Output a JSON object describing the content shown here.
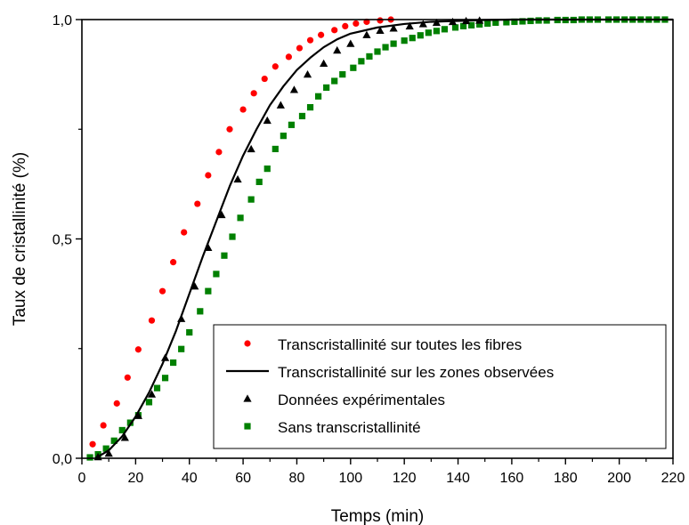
{
  "chart_data": {
    "type": "scatter",
    "xlabel": "Temps (min)",
    "ylabel": "Taux de cristallinité (%)",
    "xlim": [
      0,
      220
    ],
    "ylim": [
      0,
      1
    ],
    "x_ticks": [
      0,
      20,
      40,
      60,
      80,
      100,
      120,
      140,
      160,
      180,
      200,
      220
    ],
    "x_tick_labels": [
      "0",
      "20",
      "40",
      "60",
      "80",
      "100",
      "120",
      "140",
      "160",
      "180",
      "200",
      "220"
    ],
    "y_ticks": [
      0,
      0.5,
      1
    ],
    "y_tick_labels": [
      "0,0",
      "0,5",
      "1,0"
    ],
    "grid": false,
    "legend_position": "bottom-right",
    "series": [
      {
        "name": "Transcristallinité sur toutes les fibres",
        "style": "points",
        "marker": "circle",
        "color": "#ff0000",
        "x": [
          4,
          8,
          13,
          17,
          21,
          26,
          30,
          34,
          38,
          43,
          47,
          51,
          55,
          60,
          64,
          68,
          72,
          77,
          81,
          85,
          89,
          94,
          98,
          102,
          106,
          111,
          115
        ],
        "y": [
          0.032,
          0.075,
          0.125,
          0.184,
          0.248,
          0.314,
          0.381,
          0.447,
          0.515,
          0.58,
          0.645,
          0.698,
          0.75,
          0.795,
          0.832,
          0.865,
          0.893,
          0.915,
          0.935,
          0.953,
          0.965,
          0.976,
          0.985,
          0.991,
          0.995,
          0.998,
          1.0
        ]
      },
      {
        "name": "Transcristallinité sur les zones observées",
        "style": "line",
        "color": "#000000",
        "x": [
          5,
          10,
          15,
          20,
          25,
          30,
          35,
          40,
          45,
          50,
          55,
          60,
          65,
          70,
          75,
          80,
          85,
          90,
          95,
          100,
          110,
          120,
          130,
          140,
          150,
          160,
          180,
          200,
          220
        ],
        "y": [
          0.0,
          0.018,
          0.05,
          0.095,
          0.15,
          0.215,
          0.29,
          0.375,
          0.46,
          0.54,
          0.62,
          0.69,
          0.75,
          0.805,
          0.848,
          0.885,
          0.913,
          0.937,
          0.955,
          0.968,
          0.982,
          0.99,
          0.995,
          0.997,
          0.999,
          1.0,
          1.0,
          1.0,
          1.0
        ]
      },
      {
        "name": "Données expérimentales",
        "style": "points",
        "marker": "triangle",
        "color": "#000000",
        "x": [
          6,
          10,
          16,
          21,
          26,
          31,
          37,
          42,
          47,
          52,
          58,
          63,
          69,
          74,
          79,
          84,
          90,
          95,
          100,
          106,
          111,
          116,
          122,
          127,
          132,
          138,
          143,
          148
        ],
        "y": [
          0.003,
          0.011,
          0.047,
          0.097,
          0.146,
          0.229,
          0.318,
          0.392,
          0.48,
          0.555,
          0.636,
          0.705,
          0.77,
          0.805,
          0.84,
          0.875,
          0.9,
          0.93,
          0.945,
          0.965,
          0.975,
          0.98,
          0.985,
          0.99,
          0.993,
          0.995,
          0.997,
          0.998
        ]
      },
      {
        "name": "Sans transcristallinité",
        "style": "points",
        "marker": "square",
        "color": "#008000",
        "x": [
          3,
          6,
          9,
          12,
          15,
          18,
          21,
          25,
          28,
          31,
          34,
          37,
          40,
          44,
          47,
          50,
          53,
          56,
          59,
          63,
          66,
          69,
          72,
          75,
          78,
          82,
          85,
          88,
          91,
          94,
          97,
          101,
          104,
          107,
          110,
          113,
          116,
          120,
          123,
          126,
          129,
          132,
          135,
          139,
          142,
          145,
          148,
          151,
          154,
          158,
          161,
          164,
          167,
          170,
          173,
          177,
          180,
          183,
          186,
          189,
          192,
          196,
          199,
          202,
          205,
          208,
          211,
          214,
          217
        ],
        "y": [
          0.002,
          0.009,
          0.022,
          0.04,
          0.064,
          0.081,
          0.098,
          0.128,
          0.16,
          0.183,
          0.218,
          0.249,
          0.287,
          0.335,
          0.381,
          0.42,
          0.462,
          0.505,
          0.548,
          0.59,
          0.63,
          0.66,
          0.705,
          0.735,
          0.76,
          0.78,
          0.8,
          0.825,
          0.845,
          0.86,
          0.875,
          0.89,
          0.905,
          0.916,
          0.927,
          0.937,
          0.945,
          0.952,
          0.958,
          0.964,
          0.97,
          0.974,
          0.978,
          0.982,
          0.985,
          0.987,
          0.989,
          0.991,
          0.993,
          0.994,
          0.995,
          0.996,
          0.997,
          0.998,
          0.998,
          0.999,
          0.999,
          0.999,
          1.0,
          1.0,
          1.0,
          1.0,
          1.0,
          1.0,
          1.0,
          1.0,
          1.0,
          1.0,
          1.0
        ]
      }
    ]
  }
}
